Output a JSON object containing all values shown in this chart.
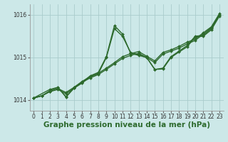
{
  "bg_color": "#cce8e8",
  "grid_color": "#aacccc",
  "line_color": "#2d6a2d",
  "title": "Graphe pression niveau de la mer (hPa)",
  "ylim": [
    1013.75,
    1016.25
  ],
  "xlim": [
    -0.5,
    23.5
  ],
  "yticks": [
    1014,
    1015,
    1016
  ],
  "xticks": [
    0,
    1,
    2,
    3,
    4,
    5,
    6,
    7,
    8,
    9,
    10,
    11,
    12,
    13,
    14,
    15,
    16,
    17,
    18,
    19,
    20,
    21,
    22,
    23
  ],
  "series": [
    {
      "x": [
        0,
        1,
        2,
        3,
        4,
        5,
        6,
        7,
        8,
        9,
        10,
        11,
        12,
        13,
        14,
        15,
        16,
        17,
        18,
        19,
        20,
        21,
        22,
        23
      ],
      "y": [
        1014.05,
        1014.1,
        1014.2,
        1014.25,
        1014.15,
        1014.28,
        1014.42,
        1014.52,
        1014.6,
        1014.72,
        1014.85,
        1014.98,
        1015.05,
        1015.1,
        1015.0,
        1014.88,
        1015.08,
        1015.15,
        1015.22,
        1015.32,
        1015.4,
        1015.55,
        1015.7,
        1016.0
      ]
    },
    {
      "x": [
        0,
        1,
        2,
        3,
        4,
        5,
        6,
        7,
        8,
        9,
        10,
        11,
        12,
        13,
        14,
        15,
        16,
        17,
        18,
        19,
        20,
        21,
        22,
        23
      ],
      "y": [
        1014.05,
        1014.1,
        1014.2,
        1014.27,
        1014.18,
        1014.3,
        1014.44,
        1014.55,
        1014.63,
        1014.75,
        1014.88,
        1015.02,
        1015.09,
        1015.14,
        1015.03,
        1014.92,
        1015.12,
        1015.18,
        1015.26,
        1015.36,
        1015.43,
        1015.58,
        1015.72,
        1016.03
      ]
    },
    {
      "x": [
        0,
        1,
        2,
        3,
        4,
        5,
        6,
        7,
        8,
        9,
        10,
        11,
        12,
        13,
        14,
        15,
        16,
        17,
        18,
        19,
        20,
        21,
        22,
        23
      ],
      "y": [
        1014.05,
        1014.1,
        1014.22,
        1014.3,
        1014.07,
        1014.28,
        1014.4,
        1014.55,
        1014.62,
        1015.0,
        1015.68,
        1015.5,
        1015.12,
        1015.07,
        1015.0,
        1014.72,
        1014.75,
        1015.02,
        1015.15,
        1015.28,
        1015.5,
        1015.52,
        1015.68,
        1016.0
      ]
    },
    {
      "x": [
        0,
        2,
        3,
        4,
        5,
        6,
        7,
        8,
        9,
        10,
        11,
        12,
        13,
        14,
        15,
        16,
        17,
        18,
        19,
        20,
        21,
        22,
        23
      ],
      "y": [
        1014.05,
        1014.25,
        1014.3,
        1014.08,
        1014.3,
        1014.42,
        1014.57,
        1014.65,
        1015.02,
        1015.75,
        1015.55,
        1015.1,
        1015.05,
        1015.0,
        1014.72,
        1014.73,
        1015.0,
        1015.13,
        1015.25,
        1015.48,
        1015.5,
        1015.65,
        1015.97
      ]
    }
  ],
  "marker": "D",
  "markersize": 2.0,
  "linewidth": 1.0,
  "title_fontsize": 7.5,
  "tick_fontsize": 5.5
}
